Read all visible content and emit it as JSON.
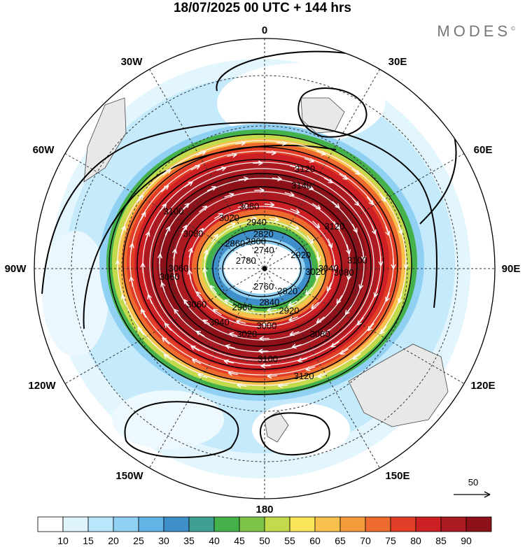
{
  "title": "18/07/2025  00 UTC  + 144 hrs",
  "brand": "MODES",
  "brand_mark": "©",
  "map_labels": {
    "lon_0": "0",
    "lon_30e": "30E",
    "lon_60e": "60E",
    "lon_90e": "90E",
    "lon_120e": "120E",
    "lon_150e": "150E",
    "lon_180": "180",
    "lon_150w": "150W",
    "lon_120w": "120W",
    "lon_90w": "90W",
    "lon_60w": "60W",
    "lon_30w": "30W"
  },
  "vector_ref": "50",
  "chart_data": {
    "type": "heatmap",
    "projection": "south-polar-stereographic",
    "field": "wind speed (shaded), geopotential height (contours), wind vectors",
    "colorbar": {
      "ticks": [
        "10",
        "15",
        "20",
        "25",
        "30",
        "35",
        "40",
        "45",
        "50",
        "55",
        "60",
        "65",
        "70",
        "75",
        "80",
        "85",
        "90"
      ],
      "bins": 18,
      "colors": [
        "#ffffff",
        "#dff4fc",
        "#b9e6fa",
        "#8fd0f3",
        "#63b3e6",
        "#3f8fcb",
        "#3e9f93",
        "#44b14b",
        "#7cc347",
        "#c2da4c",
        "#fae55a",
        "#f8c04c",
        "#f69b3c",
        "#ed6b2f",
        "#e23d26",
        "#cc2025",
        "#ac1a21",
        "#8c1119"
      ]
    },
    "contour_labels": [
      {
        "text": "3120",
        "lon": 22,
        "lat": -40
      },
      {
        "text": "3140",
        "lon": 24,
        "lat": -47
      },
      {
        "text": "3100",
        "lon": -58,
        "lat": -40
      },
      {
        "text": "3120",
        "lon": 59,
        "lat": -51
      },
      {
        "text": "3100",
        "lon": 85,
        "lat": -46
      },
      {
        "text": "3080",
        "lon": 93,
        "lat": -52
      },
      {
        "text": "3040",
        "lon": 90,
        "lat": -59
      },
      {
        "text": "3020",
        "lon": 94,
        "lat": -65
      },
      {
        "text": "3020",
        "lon": -35,
        "lat": -60
      },
      {
        "text": "3080",
        "lon": -14,
        "lat": -59
      },
      {
        "text": "3080",
        "lon": -64,
        "lat": -52
      },
      {
        "text": "3060",
        "lon": -90,
        "lat": -49
      },
      {
        "text": "3060",
        "lon": -95,
        "lat": -45
      },
      {
        "text": "3060",
        "lon": -118,
        "lat": -53
      },
      {
        "text": "3040",
        "lon": -140,
        "lat": -56
      },
      {
        "text": "3020",
        "lon": -165,
        "lat": -57
      },
      {
        "text": "3000",
        "lon": 178,
        "lat": -62
      },
      {
        "text": "3080",
        "lon": 140,
        "lat": -49
      },
      {
        "text": "3100",
        "lon": 178,
        "lat": -47
      },
      {
        "text": "3120",
        "lon": 160,
        "lat": -37
      },
      {
        "text": "2920",
        "lon": 150,
        "lat": -66
      },
      {
        "text": "2960",
        "lon": -150,
        "lat": -68
      },
      {
        "text": "2840",
        "lon": 172,
        "lat": -73
      },
      {
        "text": "2820",
        "lon": 135,
        "lat": -74
      },
      {
        "text": "2760",
        "lon": -177,
        "lat": -81
      },
      {
        "text": "2740",
        "lon": -2,
        "lat": -81
      },
      {
        "text": "2800",
        "lon": -18,
        "lat": -76
      },
      {
        "text": "2820",
        "lon": -2,
        "lat": -73
      },
      {
        "text": "2940",
        "lon": -10,
        "lat": -67
      },
      {
        "text": "2860",
        "lon": -50,
        "lat": -71
      },
      {
        "text": "2780",
        "lon": -68,
        "lat": -80
      },
      {
        "text": "2920",
        "lon": 70,
        "lat": -71
      }
    ]
  }
}
